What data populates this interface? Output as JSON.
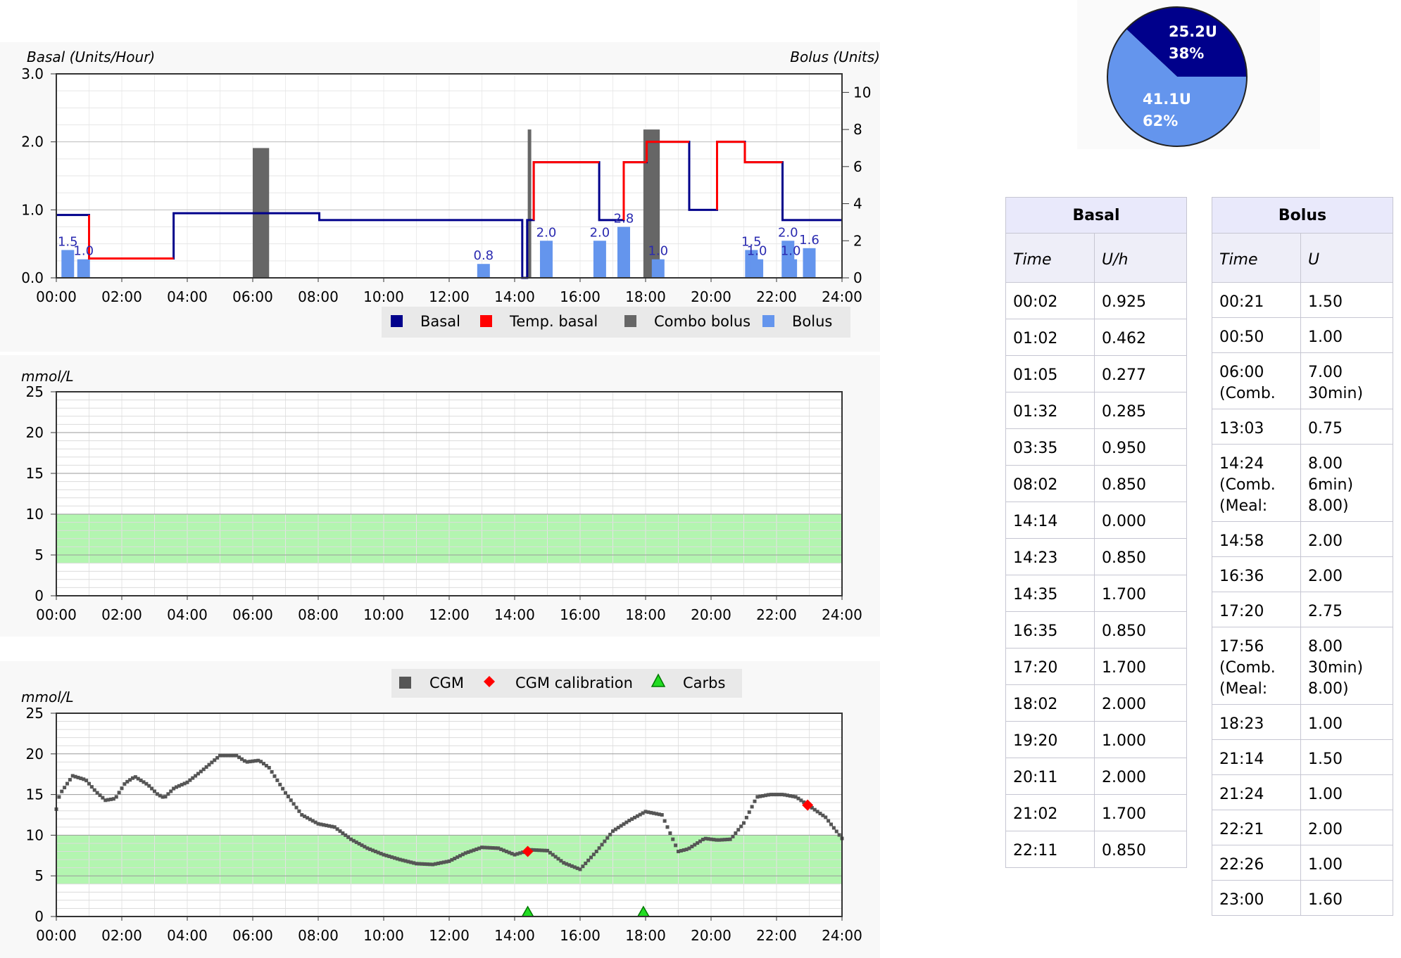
{
  "chart_data": [
    {
      "type": "bar",
      "subtype": "insulin-delivery-step-line-with-bars",
      "ylabel_left": "Basal (Units/Hour)",
      "ylabel_right": "Bolus (Units)",
      "ylim_left": [
        0,
        3.0
      ],
      "ylim_right": [
        0,
        11
      ],
      "yticks_left": [
        "0.0",
        "1.0",
        "2.0",
        "3.0"
      ],
      "yticks_right": [
        "0",
        "2",
        "4",
        "6",
        "8",
        "10"
      ],
      "x_ticks": [
        "00:00",
        "02:00",
        "04:00",
        "06:00",
        "08:00",
        "10:00",
        "12:00",
        "14:00",
        "16:00",
        "18:00",
        "20:00",
        "22:00",
        "24:00"
      ],
      "grid": true,
      "legend_position": "bottom-right",
      "legend": [
        {
          "label": "Basal",
          "color": "#00008b"
        },
        {
          "label": "Temp. basal",
          "color": "#ff0000"
        },
        {
          "label": "Combo bolus",
          "color": "#666666"
        },
        {
          "label": "Bolus",
          "color": "#6495ed"
        }
      ],
      "basal_steps": [
        {
          "start": 0.0,
          "end": 1.0,
          "value": 0.925
        },
        {
          "start": 1.0,
          "end": 3.583,
          "value": 0.285,
          "temp": true
        },
        {
          "start": 3.583,
          "end": 8.033,
          "value": 0.95
        },
        {
          "start": 8.033,
          "end": 14.233,
          "value": 0.85
        },
        {
          "start": 14.233,
          "end": 14.383,
          "value": 0.0
        },
        {
          "start": 14.383,
          "end": 14.583,
          "value": 0.85
        },
        {
          "start": 14.583,
          "end": 16.583,
          "value": 1.7,
          "temp": true
        },
        {
          "start": 16.583,
          "end": 17.333,
          "value": 0.85
        },
        {
          "start": 17.333,
          "end": 18.033,
          "value": 1.7,
          "temp": true
        },
        {
          "start": 18.033,
          "end": 19.333,
          "value": 2.0,
          "temp": true
        },
        {
          "start": 19.333,
          "end": 20.183,
          "value": 1.0
        },
        {
          "start": 20.183,
          "end": 21.033,
          "value": 2.0,
          "temp": true
        },
        {
          "start": 21.033,
          "end": 22.183,
          "value": 1.7,
          "temp": true
        },
        {
          "start": 22.183,
          "end": 24.0,
          "value": 0.85
        }
      ],
      "bolus_bars": [
        {
          "time": 0.35,
          "value": 1.5,
          "label": "1.5"
        },
        {
          "time": 0.833,
          "value": 1.0,
          "label": "1.0"
        },
        {
          "time": 13.05,
          "value": 0.75,
          "label": "0.8"
        },
        {
          "time": 14.967,
          "value": 2.0,
          "label": "2.0"
        },
        {
          "time": 16.6,
          "value": 2.0,
          "label": "2.0"
        },
        {
          "time": 17.333,
          "value": 2.75,
          "label": "2.8"
        },
        {
          "time": 18.383,
          "value": 1.0,
          "label": "1.0"
        },
        {
          "time": 21.233,
          "value": 1.5,
          "label": "1.5"
        },
        {
          "time": 21.4,
          "value": 1.0,
          "label": "1.0"
        },
        {
          "time": 22.35,
          "value": 2.0,
          "label": "2.0"
        },
        {
          "time": 22.433,
          "value": 1.0,
          "label": "1.0"
        },
        {
          "time": 23.0,
          "value": 1.6,
          "label": "1.6"
        }
      ],
      "combo_bars": [
        {
          "start": 6.0,
          "end": 6.5,
          "value": 7.0
        },
        {
          "start": 14.4,
          "end": 14.5,
          "value": 8.0
        },
        {
          "start": 17.933,
          "end": 18.433,
          "value": 8.0
        }
      ]
    },
    {
      "type": "line",
      "ylabel": "mmol/L",
      "ylim": [
        0,
        25
      ],
      "yticks": [
        "0",
        "5",
        "10",
        "15",
        "20",
        "25"
      ],
      "x_ticks": [
        "00:00",
        "02:00",
        "04:00",
        "06:00",
        "08:00",
        "10:00",
        "12:00",
        "14:00",
        "16:00",
        "18:00",
        "20:00",
        "22:00",
        "24:00"
      ],
      "target_range": [
        4,
        10
      ],
      "grid": true,
      "series": []
    },
    {
      "type": "scatter",
      "ylabel": "mmol/L",
      "ylim": [
        0,
        25
      ],
      "yticks": [
        "0",
        "5",
        "10",
        "15",
        "20",
        "25"
      ],
      "x_ticks": [
        "00:00",
        "02:00",
        "04:00",
        "06:00",
        "08:00",
        "10:00",
        "12:00",
        "14:00",
        "16:00",
        "18:00",
        "20:00",
        "22:00",
        "24:00"
      ],
      "target_range": [
        4,
        10
      ],
      "grid": true,
      "legend_position": "top",
      "legend": [
        {
          "label": "CGM",
          "color": "#555555"
        },
        {
          "label": "CGM calibration",
          "color": "#ff0000"
        },
        {
          "label": "Carbs",
          "color": "#22dd22"
        }
      ],
      "cgm_knots": [
        [
          0,
          13.2
        ],
        [
          0.1,
          15
        ],
        [
          0.5,
          17.3
        ],
        [
          0.9,
          16.8
        ],
        [
          1.2,
          15.4
        ],
        [
          1.5,
          14.3
        ],
        [
          1.8,
          14.5
        ],
        [
          2.1,
          16.4
        ],
        [
          2.4,
          17.2
        ],
        [
          2.8,
          16.2
        ],
        [
          3.1,
          15.0
        ],
        [
          3.3,
          14.6
        ],
        [
          3.6,
          15.8
        ],
        [
          4.0,
          16.5
        ],
        [
          4.5,
          18.1
        ],
        [
          5.0,
          19.8
        ],
        [
          5.5,
          19.8
        ],
        [
          5.8,
          19.0
        ],
        [
          6.2,
          19.2
        ],
        [
          6.5,
          18.3
        ],
        [
          7.0,
          15.2
        ],
        [
          7.5,
          12.5
        ],
        [
          8.0,
          11.4
        ],
        [
          8.5,
          11.0
        ],
        [
          9.0,
          9.5
        ],
        [
          9.5,
          8.4
        ],
        [
          10.0,
          7.6
        ],
        [
          10.5,
          7.0
        ],
        [
          11.0,
          6.5
        ],
        [
          11.5,
          6.4
        ],
        [
          12.0,
          6.8
        ],
        [
          12.5,
          7.8
        ],
        [
          13.0,
          8.5
        ],
        [
          13.5,
          8.4
        ],
        [
          14.0,
          7.6
        ],
        [
          14.5,
          8.2
        ],
        [
          15.0,
          8.1
        ],
        [
          15.5,
          6.6
        ],
        [
          16.0,
          5.8
        ],
        [
          16.5,
          8.0
        ],
        [
          17.0,
          10.5
        ],
        [
          17.5,
          11.8
        ],
        [
          18.0,
          12.9
        ],
        [
          18.5,
          12.5
        ],
        [
          18.8,
          9.8
        ],
        [
          19.0,
          8.0
        ],
        [
          19.3,
          8.3
        ],
        [
          19.8,
          9.6
        ],
        [
          20.2,
          9.4
        ],
        [
          20.6,
          9.5
        ],
        [
          21.0,
          11.5
        ],
        [
          21.4,
          14.7
        ],
        [
          21.8,
          15.0
        ],
        [
          22.2,
          15.0
        ],
        [
          22.6,
          14.7
        ],
        [
          23.0,
          13.6
        ],
        [
          23.5,
          12.2
        ],
        [
          24.0,
          9.6
        ]
      ],
      "calibrations": [
        {
          "time": 14.4,
          "value": 8.0
        },
        {
          "time": 22.95,
          "value": 13.7
        }
      ],
      "carbs": [
        {
          "time": 14.4
        },
        {
          "time": 17.933
        }
      ]
    },
    {
      "type": "pie",
      "slices": [
        {
          "label": "25.2U",
          "pct": "38%",
          "value": 25.2,
          "color": "#00008b"
        },
        {
          "label": "41.1U",
          "pct": "62%",
          "value": 41.1,
          "color": "#6495ed"
        }
      ]
    }
  ],
  "basal_table": {
    "title": "Basal",
    "col_time": "Time",
    "col_value": "U/h",
    "rows": [
      {
        "time": "00:02",
        "value": "0.925"
      },
      {
        "time": "01:02",
        "value": "0.462"
      },
      {
        "time": "01:05",
        "value": "0.277"
      },
      {
        "time": "01:32",
        "value": "0.285"
      },
      {
        "time": "03:35",
        "value": "0.950"
      },
      {
        "time": "08:02",
        "value": "0.850"
      },
      {
        "time": "14:14",
        "value": "0.000"
      },
      {
        "time": "14:23",
        "value": "0.850"
      },
      {
        "time": "14:35",
        "value": "1.700"
      },
      {
        "time": "16:35",
        "value": "0.850"
      },
      {
        "time": "17:20",
        "value": "1.700"
      },
      {
        "time": "18:02",
        "value": "2.000"
      },
      {
        "time": "19:20",
        "value": "1.000"
      },
      {
        "time": "20:11",
        "value": "2.000"
      },
      {
        "time": "21:02",
        "value": "1.700"
      },
      {
        "time": "22:11",
        "value": "0.850"
      }
    ]
  },
  "bolus_table": {
    "title": "Bolus",
    "col_time": "Time",
    "col_value": "U",
    "rows": [
      {
        "time": [
          "00:21"
        ],
        "value": [
          "1.50"
        ]
      },
      {
        "time": [
          "00:50"
        ],
        "value": [
          "1.00"
        ]
      },
      {
        "time": [
          "06:00",
          "(Comb."
        ],
        "value": [
          "7.00",
          "30min)"
        ]
      },
      {
        "time": [
          "13:03"
        ],
        "value": [
          "0.75"
        ]
      },
      {
        "time": [
          "14:24",
          "(Comb.",
          "(Meal:"
        ],
        "value": [
          "8.00",
          "6min)",
          "8.00)"
        ]
      },
      {
        "time": [
          "14:58"
        ],
        "value": [
          "2.00"
        ]
      },
      {
        "time": [
          "16:36"
        ],
        "value": [
          "2.00"
        ]
      },
      {
        "time": [
          "17:20"
        ],
        "value": [
          "2.75"
        ]
      },
      {
        "time": [
          "17:56",
          "(Comb.",
          "(Meal:"
        ],
        "value": [
          "8.00",
          "30min)",
          "8.00)"
        ]
      },
      {
        "time": [
          "18:23"
        ],
        "value": [
          "1.00"
        ]
      },
      {
        "time": [
          "21:14"
        ],
        "value": [
          "1.50"
        ]
      },
      {
        "time": [
          "21:24"
        ],
        "value": [
          "1.00"
        ]
      },
      {
        "time": [
          "22:21"
        ],
        "value": [
          "2.00"
        ]
      },
      {
        "time": [
          "22:26"
        ],
        "value": [
          "1.00"
        ]
      },
      {
        "time": [
          "23:00"
        ],
        "value": [
          "1.60"
        ]
      }
    ]
  }
}
